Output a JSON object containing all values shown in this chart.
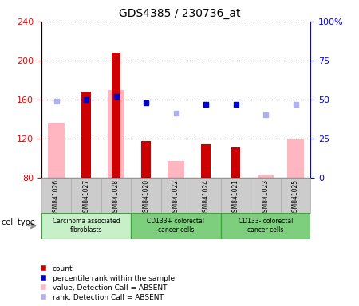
{
  "title": "GDS4385 / 230736_at",
  "samples": [
    "GSM841026",
    "GSM841027",
    "GSM841028",
    "GSM841020",
    "GSM841022",
    "GSM841024",
    "GSM841021",
    "GSM841023",
    "GSM841025"
  ],
  "count_values": [
    null,
    168,
    208,
    117,
    null,
    114,
    111,
    null,
    null
  ],
  "value_absent": [
    136,
    null,
    170,
    null,
    97,
    null,
    null,
    83,
    119
  ],
  "percentile_rank": [
    null,
    50,
    52,
    48,
    null,
    47,
    47,
    null,
    null
  ],
  "rank_absent": [
    49,
    null,
    null,
    null,
    41,
    47,
    null,
    40,
    47
  ],
  "ylim_left": [
    80,
    240
  ],
  "ylim_right": [
    0,
    100
  ],
  "yticks_left": [
    80,
    120,
    160,
    200,
    240
  ],
  "yticks_right": [
    0,
    25,
    50,
    75,
    100
  ],
  "groups": [
    {
      "label": "Carcinoma associated\nfibroblasts",
      "indices": [
        0,
        1,
        2
      ],
      "color": "#c8f0c8"
    },
    {
      "label": "CD133+ colorectal\ncancer cells",
      "indices": [
        3,
        4,
        5
      ],
      "color": "#90ee90"
    },
    {
      "label": "CD133- colorectal\ncancer cells",
      "indices": [
        6,
        7,
        8
      ],
      "color": "#90ee90"
    }
  ],
  "count_color": "#cc0000",
  "value_absent_color": "#ffb6c1",
  "percentile_color": "#0000cc",
  "rank_absent_color": "#b0b0ee",
  "plot_bg": "#ffffff",
  "gray_row_color": "#cccccc",
  "gray_row_edge": "#aaaaaa"
}
